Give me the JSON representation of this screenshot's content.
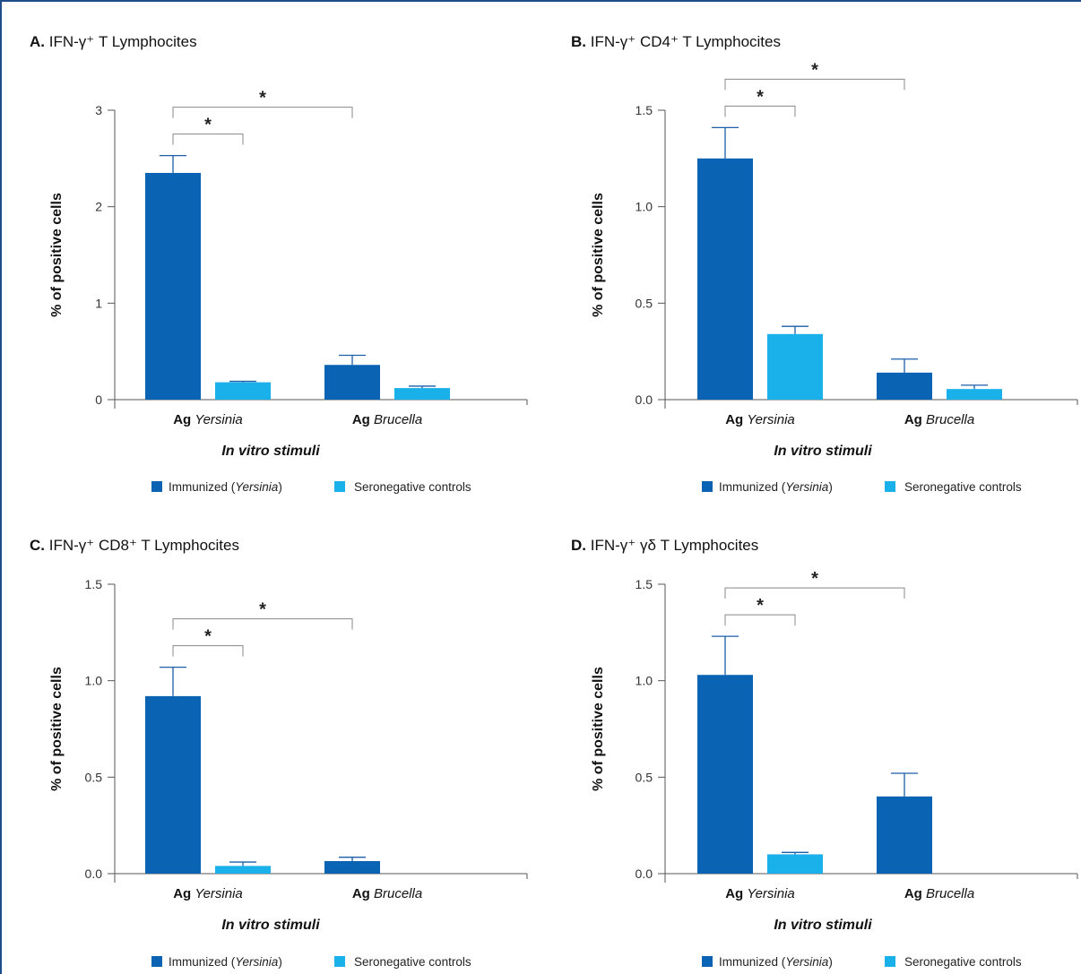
{
  "colors": {
    "immunized": "#0b64b3",
    "seronegative": "#1ab0ea",
    "frame": "#1d4e89"
  },
  "legend": {
    "immunized_prefix": "Immunized (",
    "immunized_italic": "Yersinia",
    "immunized_suffix": ")",
    "seronegative": "Seronegative controls"
  },
  "chart_data": [
    {
      "type": "bar",
      "panel_letter": "A.",
      "title": "IFN-γ⁺ T Lymphocites",
      "ylabel": "% of positive cells",
      "xlabel": "In vitro stimuli",
      "categories": [
        {
          "bold": "Ag",
          "italic": "Yersinia"
        },
        {
          "bold": "Ag",
          "italic": "Brucella"
        }
      ],
      "ylim": [
        0,
        3
      ],
      "yticks": [
        "0",
        "1",
        "2",
        "3"
      ],
      "series": [
        {
          "name": "Immunized (Yersinia)",
          "values": [
            2.35,
            0.36
          ],
          "errors": [
            0.18,
            0.1
          ]
        },
        {
          "name": "Seronegative controls",
          "values": [
            0.18,
            0.12
          ],
          "errors": [
            0.01,
            0.02
          ]
        }
      ],
      "significance": [
        {
          "from_series": 0,
          "from_cat": 0,
          "to_series": 1,
          "to_cat": 0,
          "label": "*"
        },
        {
          "from_series": 0,
          "from_cat": 0,
          "to_series": 0,
          "to_cat": 1,
          "label": "*"
        }
      ]
    },
    {
      "type": "bar",
      "panel_letter": "B.",
      "title": "IFN-γ⁺ CD4⁺ T Lymphocites",
      "ylabel": "% of positive cells",
      "xlabel": "In vitro stimuli",
      "categories": [
        {
          "bold": "Ag",
          "italic": "Yersinia"
        },
        {
          "bold": "Ag",
          "italic": "Brucella"
        }
      ],
      "ylim": [
        0,
        1.5
      ],
      "yticks": [
        "0.0",
        "0.5",
        "1.0",
        "1.5"
      ],
      "series": [
        {
          "name": "Immunized (Yersinia)",
          "values": [
            1.25,
            0.14
          ],
          "errors": [
            0.16,
            0.07
          ]
        },
        {
          "name": "Seronegative controls",
          "values": [
            0.34,
            0.055
          ],
          "errors": [
            0.04,
            0.02
          ]
        }
      ],
      "significance": [
        {
          "from_series": 0,
          "from_cat": 0,
          "to_series": 1,
          "to_cat": 0,
          "label": "*"
        },
        {
          "from_series": 0,
          "from_cat": 0,
          "to_series": 0,
          "to_cat": 1,
          "label": "*"
        }
      ]
    },
    {
      "type": "bar",
      "panel_letter": "C.",
      "title": "IFN-γ⁺ CD8⁺ T Lymphocites",
      "ylabel": "% of positive cells",
      "xlabel": "In vitro stimuli",
      "categories": [
        {
          "bold": "Ag",
          "italic": "Yersinia"
        },
        {
          "bold": "Ag",
          "italic": "Brucella"
        }
      ],
      "ylim": [
        0,
        1.5
      ],
      "yticks": [
        "0.0",
        "0.5",
        "1.0",
        "1.5"
      ],
      "series": [
        {
          "name": "Immunized (Yersinia)",
          "values": [
            0.92,
            0.065
          ],
          "errors": [
            0.15,
            0.02
          ]
        },
        {
          "name": "Seronegative controls",
          "values": [
            0.04,
            0
          ],
          "errors": [
            0.02,
            0
          ]
        }
      ],
      "significance": [
        {
          "from_series": 0,
          "from_cat": 0,
          "to_series": 1,
          "to_cat": 0,
          "label": "*"
        },
        {
          "from_series": 0,
          "from_cat": 0,
          "to_series": 0,
          "to_cat": 1,
          "label": "*"
        }
      ]
    },
    {
      "type": "bar",
      "panel_letter": "D.",
      "title": "IFN-γ⁺ γδ T Lymphocites",
      "ylabel": "% of positive cells",
      "xlabel": "In vitro stimuli",
      "categories": [
        {
          "bold": "Ag",
          "italic": "Yersinia"
        },
        {
          "bold": "Ag",
          "italic": "Brucella"
        }
      ],
      "ylim": [
        0,
        1.5
      ],
      "yticks": [
        "0.0",
        "0.5",
        "1.0",
        "1.5"
      ],
      "series": [
        {
          "name": "Immunized (Yersinia)",
          "values": [
            1.03,
            0.4
          ],
          "errors": [
            0.2,
            0.12
          ]
        },
        {
          "name": "Seronegative controls",
          "values": [
            0.1,
            0
          ],
          "errors": [
            0.01,
            0
          ]
        }
      ],
      "significance": [
        {
          "from_series": 0,
          "from_cat": 0,
          "to_series": 1,
          "to_cat": 0,
          "label": "*"
        },
        {
          "from_series": 0,
          "from_cat": 0,
          "to_series": 0,
          "to_cat": 1,
          "label": "*"
        }
      ]
    }
  ]
}
